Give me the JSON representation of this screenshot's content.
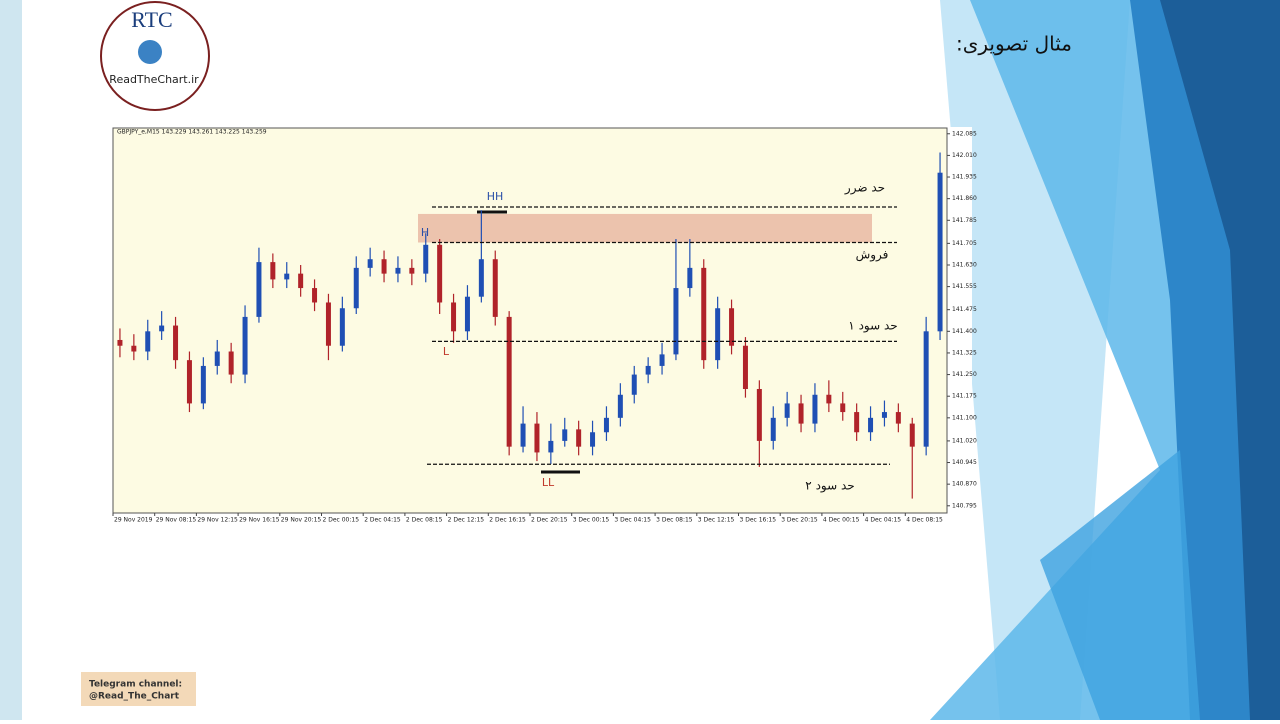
{
  "slide": {
    "title": "مثال تصویری:",
    "logo": {
      "name": "RTC",
      "site": "ReadTheChart.ir"
    },
    "footer": [
      "Telegram channel:",
      "@Read_The_Chart"
    ]
  },
  "chart_data": {
    "type": "candlestick",
    "title": "GBPJPY_e,M15  143.229 143.261 143.225 143.259",
    "x_labels": [
      "29 Nov 2019",
      "29 Nov 08:15",
      "29 Nov 12:15",
      "29 Nov 16:15",
      "29 Nov 20:15",
      "2 Dec 00:15",
      "2 Dec 04:15",
      "2 Dec 08:15",
      "2 Dec 12:15",
      "2 Dec 16:15",
      "2 Dec 20:15",
      "3 Dec 00:15",
      "3 Dec 04:15",
      "3 Dec 08:15",
      "3 Dec 12:15",
      "3 Dec 16:15",
      "3 Dec 20:15",
      "4 Dec 00:15",
      "4 Dec 04:15",
      "4 Dec 08:15"
    ],
    "open": [
      141.37,
      141.35,
      141.33,
      141.4,
      141.42,
      141.3,
      141.15,
      141.28,
      141.33,
      141.25,
      141.45,
      141.64,
      141.58,
      141.6,
      141.55,
      141.5,
      141.35,
      141.48,
      141.62,
      141.65,
      141.6,
      141.62,
      141.6,
      141.7,
      141.5,
      141.4,
      141.52,
      141.65,
      141.45,
      141.0,
      141.08,
      140.98,
      141.02,
      141.06,
      141.0,
      141.05,
      141.1,
      141.18,
      141.25,
      141.28,
      141.32,
      141.55,
      141.62,
      141.3,
      141.48,
      141.35,
      141.2,
      141.02,
      141.1,
      141.15,
      141.08,
      141.18,
      141.15,
      141.12,
      141.05,
      141.1,
      141.12,
      141.08,
      141.0,
      141.4
    ],
    "high": [
      141.41,
      141.39,
      141.44,
      141.47,
      141.45,
      141.33,
      141.31,
      141.37,
      141.36,
      141.49,
      141.69,
      141.67,
      141.64,
      141.63,
      141.58,
      141.53,
      141.52,
      141.66,
      141.69,
      141.68,
      141.66,
      141.65,
      141.74,
      141.72,
      141.53,
      141.56,
      141.82,
      141.68,
      141.47,
      141.14,
      141.12,
      141.08,
      141.1,
      141.09,
      141.09,
      141.14,
      141.22,
      141.28,
      141.31,
      141.36,
      141.72,
      141.72,
      141.65,
      141.52,
      141.51,
      141.38,
      141.23,
      141.14,
      141.19,
      141.18,
      141.22,
      141.23,
      141.19,
      141.15,
      141.14,
      141.16,
      141.15,
      141.1,
      141.45,
      142.02
    ],
    "low": [
      141.31,
      141.3,
      141.3,
      141.37,
      141.27,
      141.12,
      141.13,
      141.25,
      141.22,
      141.22,
      141.43,
      141.55,
      141.55,
      141.52,
      141.47,
      141.3,
      141.33,
      141.46,
      141.59,
      141.57,
      141.57,
      141.56,
      141.57,
      141.46,
      141.36,
      141.37,
      141.5,
      141.42,
      140.97,
      140.98,
      140.95,
      140.94,
      141.0,
      140.97,
      140.97,
      141.02,
      141.07,
      141.15,
      141.22,
      141.25,
      141.3,
      141.52,
      141.27,
      141.27,
      141.32,
      141.17,
      140.93,
      140.99,
      141.07,
      141.05,
      141.05,
      141.12,
      141.09,
      141.02,
      141.02,
      141.07,
      141.05,
      140.82,
      140.97,
      141.37
    ],
    "close": [
      141.35,
      141.33,
      141.4,
      141.42,
      141.3,
      141.15,
      141.28,
      141.33,
      141.25,
      141.45,
      141.64,
      141.58,
      141.6,
      141.55,
      141.5,
      141.35,
      141.48,
      141.62,
      141.65,
      141.6,
      141.62,
      141.6,
      141.7,
      141.5,
      141.4,
      141.52,
      141.65,
      141.45,
      141.0,
      141.08,
      140.98,
      141.02,
      141.06,
      141.0,
      141.05,
      141.1,
      141.18,
      141.25,
      141.28,
      141.32,
      141.55,
      141.62,
      141.3,
      141.48,
      141.35,
      141.2,
      141.02,
      141.1,
      141.15,
      141.08,
      141.18,
      141.15,
      141.12,
      141.05,
      141.1,
      141.12,
      141.08,
      141.0,
      141.4,
      141.95
    ],
    "up_color": "#1f4fb4",
    "down_color": "#b0232a",
    "ylim": [
      140.77,
      142.105
    ],
    "yticks": [
      {
        "value": 142.085,
        "label": "142.085"
      },
      {
        "value": 142.01,
        "label": "142.010"
      },
      {
        "value": 141.935,
        "label": "141.935"
      },
      {
        "value": 141.86,
        "label": "141.860"
      },
      {
        "value": 141.785,
        "label": "141.785"
      },
      {
        "value": 141.705,
        "label": "141.705"
      },
      {
        "value": 141.63,
        "label": "141.630"
      },
      {
        "value": 141.555,
        "label": "141.555"
      },
      {
        "value": 141.475,
        "label": "141.475"
      },
      {
        "value": 141.4,
        "label": "141.400"
      },
      {
        "value": 141.325,
        "label": "141.325"
      },
      {
        "value": 141.25,
        "label": "141.250"
      },
      {
        "value": 141.175,
        "label": "141.175"
      },
      {
        "value": 141.1,
        "label": "141.100"
      },
      {
        "value": 141.02,
        "label": "141.020"
      },
      {
        "value": 140.945,
        "label": "140.945"
      },
      {
        "value": 140.87,
        "label": "140.870"
      },
      {
        "value": 140.795,
        "label": "140.795"
      }
    ],
    "levels": [
      {
        "label": "حد ضرر",
        "value": 141.831
      },
      {
        "label": "فروش",
        "value": 141.708
      },
      {
        "label": "حد سود ۱",
        "value": 141.365
      },
      {
        "label": "حد سود ۲",
        "value": 140.939
      }
    ],
    "zone": {
      "from": 141.708,
      "to": 141.807,
      "color": "#e9b9a3"
    },
    "annotations": [
      "HH",
      "H",
      "L",
      "LL"
    ]
  }
}
